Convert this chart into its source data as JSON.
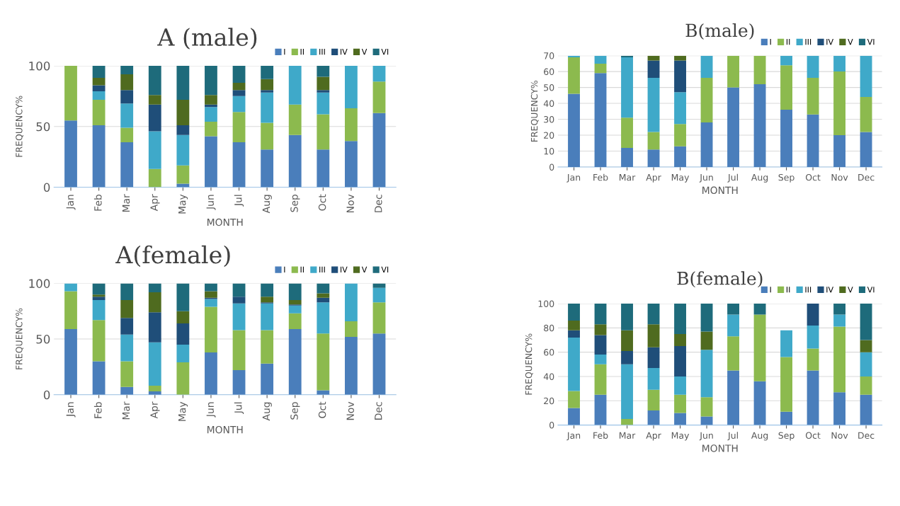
{
  "chart_data": [
    {
      "type": "bar",
      "title": "A (male)",
      "xlabel": "MONTH",
      "ylabel": "FREQUENCY%",
      "stacked": true,
      "grid": "y",
      "legend": "top right",
      "categories": [
        "Jan",
        "Feb",
        "Mar",
        "Apr",
        "May",
        "Jun",
        "Jul",
        "Aug",
        "Sep",
        "Oct",
        "Nov",
        "Dec"
      ],
      "ylim": [
        0,
        100
      ],
      "yticks": [
        0,
        50,
        100
      ],
      "series": [
        {
          "name": "I",
          "color": "#4a7ebb",
          "values": [
            55,
            51,
            37,
            0,
            3,
            42,
            37,
            31,
            43,
            31,
            38,
            61
          ]
        },
        {
          "name": "II",
          "color": "#8cba4e",
          "values": [
            45,
            21,
            12,
            15,
            15,
            12,
            25,
            22,
            25,
            29,
            27,
            26
          ]
        },
        {
          "name": "III",
          "color": "#3fa9c9",
          "values": [
            0,
            7,
            20,
            31,
            25,
            12,
            13,
            25,
            32,
            18,
            35,
            13
          ]
        },
        {
          "name": "IV",
          "color": "#1f4e79",
          "values": [
            0,
            5,
            11,
            22,
            8,
            2,
            5,
            2,
            0,
            2,
            0,
            0
          ]
        },
        {
          "name": "V",
          "color": "#4f6b1f",
          "values": [
            0,
            6,
            13,
            8,
            21,
            8,
            6,
            9,
            0,
            11,
            0,
            0
          ]
        },
        {
          "name": "VI",
          "color": "#1e6b7b",
          "values": [
            0,
            10,
            7,
            24,
            28,
            24,
            14,
            11,
            0,
            9,
            0,
            0
          ]
        }
      ]
    },
    {
      "type": "bar",
      "title": "B(male)",
      "xlabel": "MONTH",
      "ylabel": "FREQUENCY%",
      "stacked": true,
      "grid": "y",
      "legend": "top right",
      "categories": [
        "Jan",
        "Feb",
        "Mar",
        "Apr",
        "May",
        "Jun",
        "Jul",
        "Aug",
        "Sep",
        "Oct",
        "Nov",
        "Dec"
      ],
      "ylim": [
        0,
        70
      ],
      "yticks": [
        0,
        10,
        20,
        30,
        40,
        50,
        60,
        70
      ],
      "series": [
        {
          "name": "I",
          "color": "#4a7ebb",
          "values": [
            46,
            59,
            12,
            11,
            13,
            28,
            50,
            52,
            36,
            33,
            20,
            22
          ]
        },
        {
          "name": "II",
          "color": "#8cba4e",
          "values": [
            23,
            6,
            19,
            11,
            14,
            28,
            20,
            18,
            28,
            23,
            40,
            22
          ]
        },
        {
          "name": "III",
          "color": "#3fa9c9",
          "values": [
            1,
            5,
            38,
            34,
            20,
            14,
            0,
            0,
            6,
            14,
            10,
            26
          ]
        },
        {
          "name": "IV",
          "color": "#1f4e79",
          "values": [
            0,
            0,
            0,
            11,
            20,
            0,
            0,
            0,
            0,
            0,
            0,
            0
          ]
        },
        {
          "name": "V",
          "color": "#4f6b1f",
          "values": [
            0,
            0,
            0,
            3,
            3,
            0,
            0,
            0,
            0,
            0,
            0,
            0
          ]
        },
        {
          "name": "VI",
          "color": "#1e6b7b",
          "values": [
            0,
            0,
            1,
            0,
            0,
            0,
            0,
            0,
            0,
            0,
            0,
            0
          ]
        }
      ]
    },
    {
      "type": "bar",
      "title": "A(female)",
      "xlabel": "MONTH",
      "ylabel": "FREQUENCY%",
      "stacked": true,
      "grid": "y",
      "legend": "top right",
      "categories": [
        "Jan",
        "Feb",
        "Mar",
        "Apr",
        "May",
        "Jun",
        "Jul",
        "Aug",
        "Sep",
        "Oct",
        "Nov",
        "Dec"
      ],
      "ylim": [
        0,
        100
      ],
      "yticks": [
        0,
        50,
        100
      ],
      "series": [
        {
          "name": "I",
          "color": "#4a7ebb",
          "values": [
            59,
            30,
            7,
            3,
            0,
            38,
            22,
            28,
            59,
            4,
            52,
            55
          ]
        },
        {
          "name": "II",
          "color": "#8cba4e",
          "values": [
            34,
            37,
            23,
            5,
            29,
            41,
            36,
            30,
            14,
            51,
            14,
            28
          ]
        },
        {
          "name": "III",
          "color": "#3fa9c9",
          "values": [
            7,
            18,
            24,
            39,
            16,
            7,
            24,
            24,
            7,
            28,
            34,
            13
          ]
        },
        {
          "name": "IV",
          "color": "#1f4e79",
          "values": [
            0,
            3,
            15,
            27,
            19,
            1,
            6,
            1,
            1,
            4,
            0,
            0
          ]
        },
        {
          "name": "V",
          "color": "#4f6b1f",
          "values": [
            0,
            2,
            16,
            18,
            11,
            6,
            0,
            5,
            4,
            4,
            0,
            0
          ]
        },
        {
          "name": "VI",
          "color": "#1e6b7b",
          "values": [
            0,
            10,
            15,
            8,
            25,
            7,
            12,
            12,
            15,
            9,
            0,
            4
          ]
        }
      ]
    },
    {
      "type": "bar",
      "title": "B(female)",
      "xlabel": "MONTH",
      "ylabel": "FREQUENCY%",
      "stacked": true,
      "grid": "y",
      "legend": "top right",
      "categories": [
        "Jan",
        "Feb",
        "Mar",
        "Apr",
        "May",
        "Jun",
        "Jul",
        "Aug",
        "Sep",
        "Oct",
        "Nov",
        "Dec"
      ],
      "ylim": [
        0,
        100
      ],
      "yticks": [
        0,
        20,
        40,
        60,
        80,
        100
      ],
      "series": [
        {
          "name": "I",
          "color": "#4a7ebb",
          "values": [
            14,
            25,
            0,
            12,
            10,
            7,
            45,
            36,
            11,
            45,
            27,
            25
          ]
        },
        {
          "name": "II",
          "color": "#8cba4e",
          "values": [
            14,
            25,
            5,
            17,
            15,
            16,
            28,
            55,
            45,
            18,
            54,
            15
          ]
        },
        {
          "name": "III",
          "color": "#3fa9c9",
          "values": [
            44,
            8,
            45,
            18,
            15,
            39,
            18,
            0,
            22,
            19,
            10,
            20
          ]
        },
        {
          "name": "IV",
          "color": "#1f4e79",
          "values": [
            6,
            16,
            11,
            17,
            25,
            0,
            0,
            0,
            0,
            18,
            0,
            0
          ]
        },
        {
          "name": "V",
          "color": "#4f6b1f",
          "values": [
            8,
            9,
            17,
            19,
            10,
            15,
            0,
            0,
            0,
            0,
            0,
            10
          ]
        },
        {
          "name": "VI",
          "color": "#1e6b7b",
          "values": [
            14,
            17,
            22,
            17,
            25,
            23,
            9,
            9,
            0,
            0,
            9,
            30
          ]
        }
      ]
    }
  ]
}
